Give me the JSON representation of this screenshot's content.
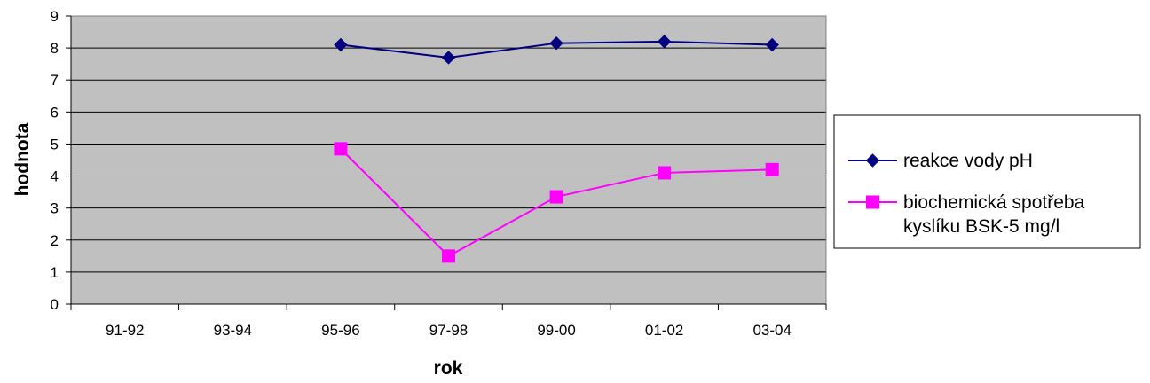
{
  "chart_data": {
    "type": "line",
    "categories": [
      "91-92",
      "93-94",
      "95-96",
      "97-98",
      "99-00",
      "01-02",
      "03-04"
    ],
    "xlabel": "rok",
    "ylabel": "hodnota",
    "ylim": [
      0,
      9
    ],
    "yticks": [
      0,
      1,
      2,
      3,
      4,
      5,
      6,
      7,
      8,
      9
    ],
    "grid": true,
    "legend_position": "right",
    "plot_background": "#c0c0c0",
    "series": [
      {
        "name": "reakce vody  pH",
        "color": "#000080",
        "marker": "diamond",
        "values": [
          null,
          null,
          8.1,
          7.7,
          8.15,
          8.2,
          8.1
        ]
      },
      {
        "name": "biochemická spotřeba kyslíku BSK-5 mg/l",
        "name_lines": [
          "biochemická spotřeba",
          "kyslíku BSK-5 mg/l"
        ],
        "color": "#ff00ff",
        "marker": "square",
        "values": [
          null,
          null,
          4.85,
          1.5,
          3.35,
          4.1,
          4.2
        ]
      }
    ]
  }
}
